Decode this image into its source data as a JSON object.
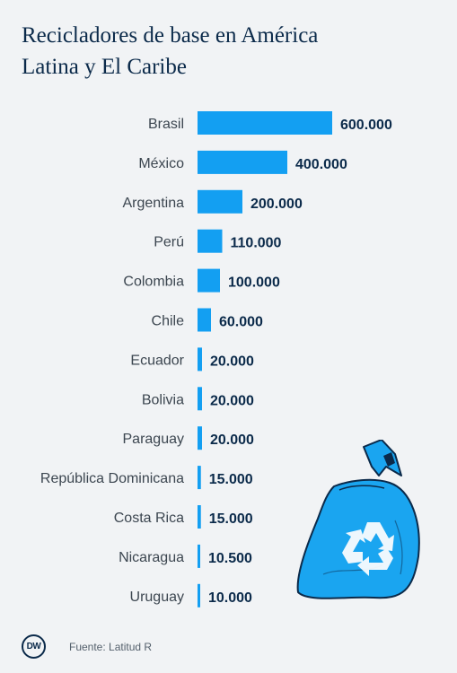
{
  "title_lines": [
    "Recicladores de base en América",
    "Latina y El Caribe"
  ],
  "footer": {
    "logo_text": "DW",
    "source": "Fuente: Latitud R"
  },
  "colors": {
    "bar": "#139ff2",
    "text": "#0b2a4a",
    "label": "#3c4650",
    "background": "#f1f3f5",
    "bag": "#1aa5f0"
  },
  "decoration": {
    "icon": "recycle-bag-icon"
  },
  "chart_data": {
    "type": "bar",
    "orientation": "horizontal",
    "title": "Recicladores de base en América Latina y El Caribe",
    "categories": [
      "Brasil",
      "México",
      "Argentina",
      "Perú",
      "Colombia",
      "Chile",
      "Ecuador",
      "Bolivia",
      "Paraguay",
      "República Dominicana",
      "Costa Rica",
      "Nicaragua",
      "Uruguay"
    ],
    "values": [
      600000,
      400000,
      200000,
      110000,
      100000,
      60000,
      20000,
      20000,
      20000,
      15000,
      15000,
      10500,
      10000
    ],
    "value_labels": [
      "600.000",
      "400.000",
      "200.000",
      "110.000",
      "100.000",
      "60.000",
      "20.000",
      "20.000",
      "20.000",
      "15.000",
      "15.000",
      "10.500",
      "10.000"
    ],
    "xlim": [
      0,
      600000
    ],
    "grid": false,
    "legend": "none"
  }
}
